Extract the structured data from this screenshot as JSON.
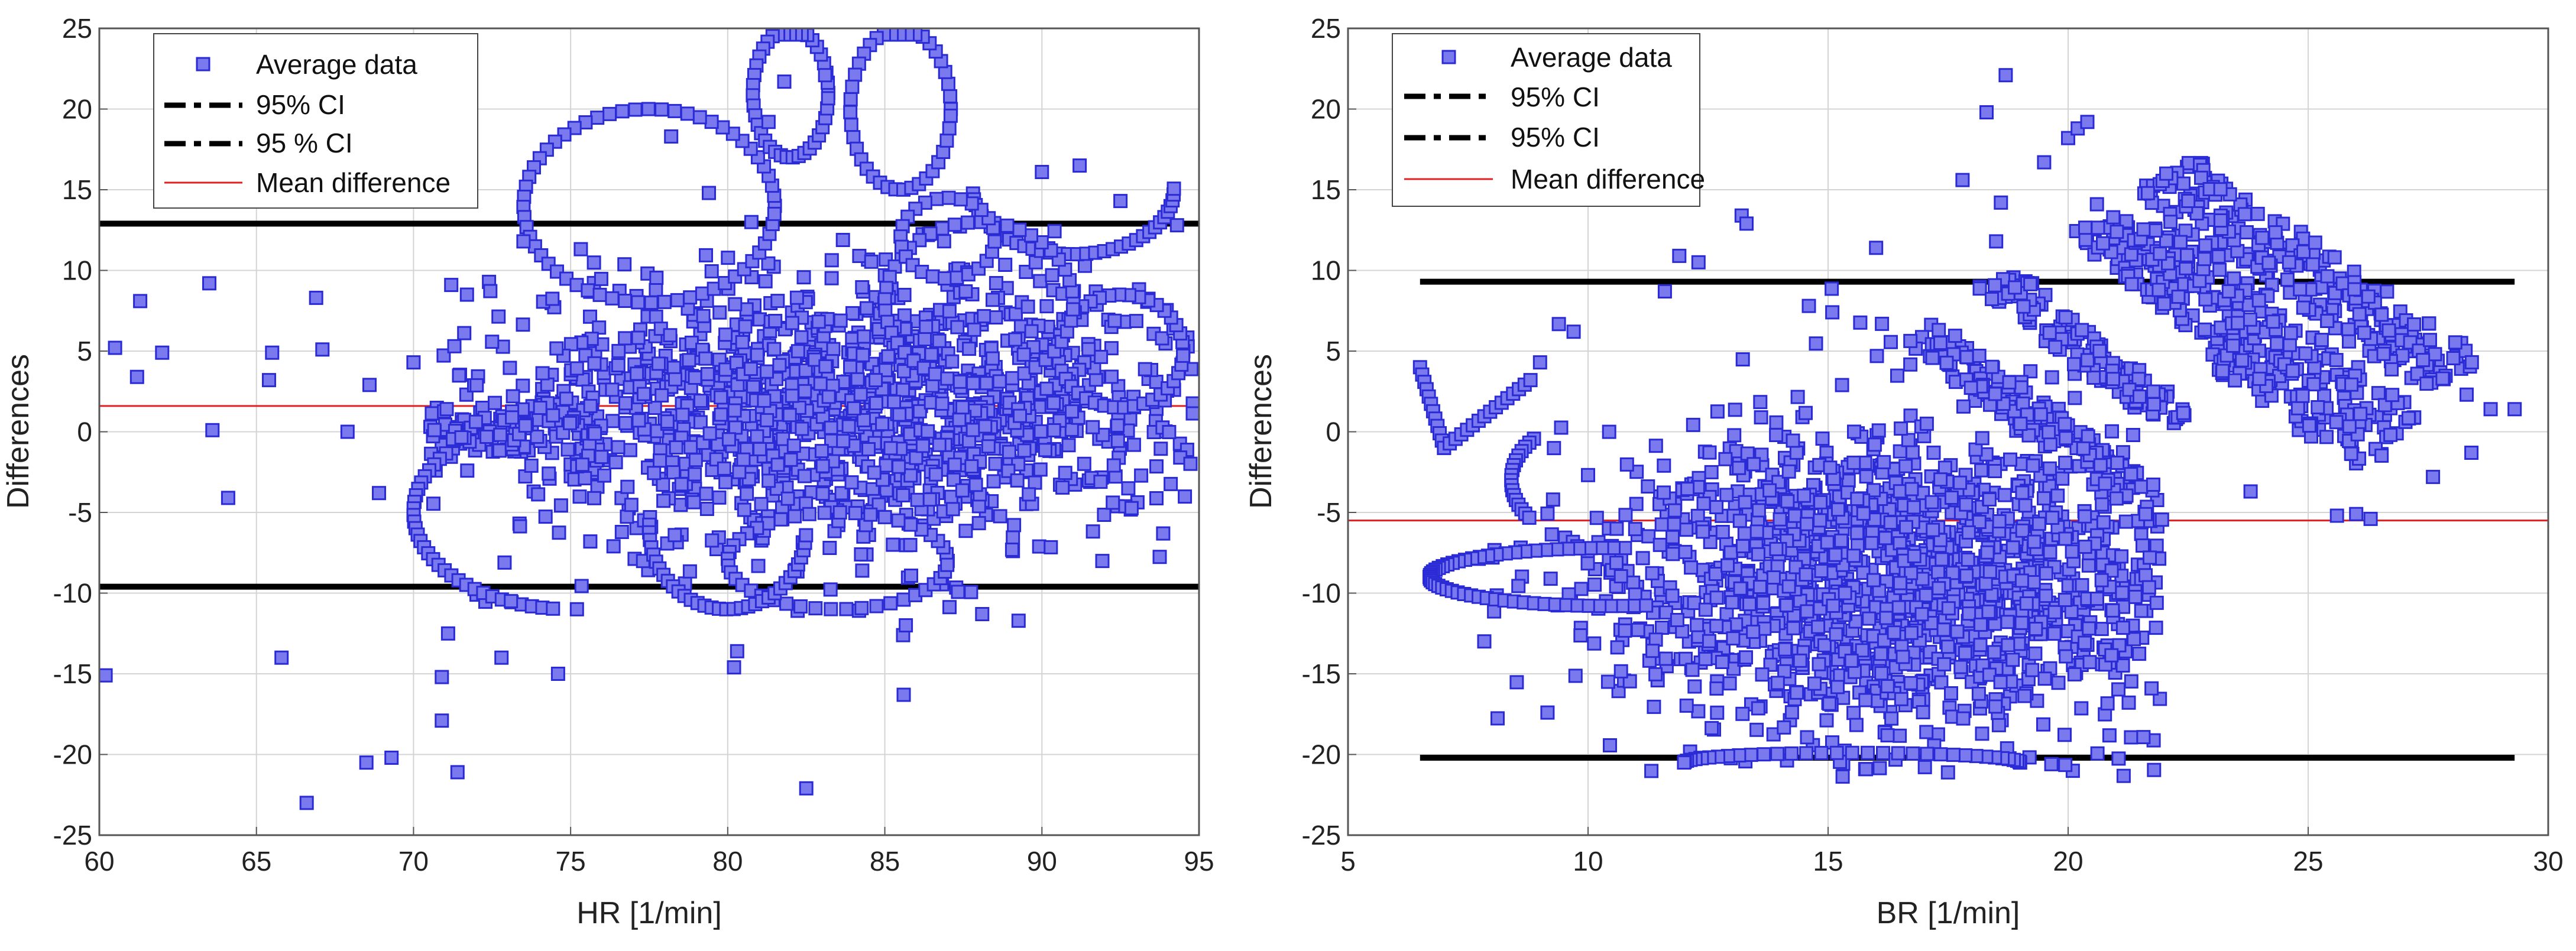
{
  "chart_data": [
    {
      "type": "scatter",
      "title": "",
      "xlabel": "HR [1/min]",
      "ylabel": "Differences",
      "xlim": [
        60,
        95
      ],
      "ylim": [
        -25,
        25
      ],
      "xticks": [
        60,
        65,
        70,
        75,
        80,
        85,
        90,
        95
      ],
      "yticks": [
        -25,
        -20,
        -15,
        -10,
        -5,
        0,
        5,
        10,
        15,
        20,
        25
      ],
      "grid": true,
      "legend_position": "top-left",
      "legend": [
        "Average data",
        "95% CI",
        "95 % CI",
        "Mean difference"
      ],
      "mean_difference": 1.6,
      "upper_ci": 12.9,
      "lower_ci": -9.6,
      "marker_color": "#7a7aee",
      "marker_edge_color": "#2b2bd6",
      "mean_line_color": "#e02020",
      "ci_line_color": "#000000",
      "cloud": {
        "x_center": 84,
        "x_spread": 6,
        "x_min": 70.5,
        "x_max": 95,
        "y_center": 1.5,
        "y_spread": 4.2,
        "count": 1500
      },
      "points": [
        [
          60.2,
          -15.1
        ],
        [
          60.5,
          5.2
        ],
        [
          61.3,
          8.1
        ],
        [
          61.2,
          3.4
        ],
        [
          62,
          4.9
        ],
        [
          63.5,
          9.2
        ],
        [
          63.6,
          0.1
        ],
        [
          64.1,
          -4.1
        ],
        [
          65.5,
          4.9
        ],
        [
          65.4,
          3.2
        ],
        [
          65.8,
          -14
        ],
        [
          66.6,
          -23
        ],
        [
          66.9,
          8.3
        ],
        [
          67.1,
          5.1
        ],
        [
          67.9,
          0
        ],
        [
          68.5,
          -20.5
        ],
        [
          68.6,
          2.9
        ],
        [
          68.9,
          -3.8
        ],
        [
          69.3,
          -20.2
        ],
        [
          70,
          4.3
        ],
        [
          70.9,
          -17.9
        ],
        [
          70.9,
          -15.2
        ],
        [
          71.1,
          -12.5
        ],
        [
          71.2,
          9.1
        ],
        [
          71.3,
          5.3
        ],
        [
          71.4,
          -21.1
        ],
        [
          71.7,
          8.5
        ],
        [
          72.8,
          -14
        ],
        [
          73.1,
          -10.5
        ],
        [
          73.5,
          11.8
        ],
        [
          74.6,
          -15
        ],
        [
          75.2,
          -11
        ],
        [
          78.2,
          18.3
        ],
        [
          79.4,
          14.8
        ],
        [
          80.2,
          -14.6
        ],
        [
          80.3,
          -13.6
        ],
        [
          81.3,
          19.2
        ],
        [
          81.8,
          21.7
        ],
        [
          82.5,
          -22.1
        ],
        [
          83.1,
          22.1
        ],
        [
          85.6,
          -16.3
        ],
        [
          88.1,
          -11.3
        ],
        [
          90,
          16.1
        ],
        [
          91.2,
          16.5
        ],
        [
          92.5,
          14.3
        ],
        [
          94.3,
          12.8
        ]
      ],
      "curves": [
        {
          "cx": 77.5,
          "cy": 14,
          "rx": 4,
          "ry": 6,
          "start": 0,
          "end": 6.2,
          "n": 60
        },
        {
          "cx": 82,
          "cy": 21,
          "rx": 1.2,
          "ry": 4,
          "start": 0,
          "end": 6.2,
          "n": 40
        },
        {
          "cx": 85.5,
          "cy": 20,
          "rx": 1.6,
          "ry": 5,
          "start": 0,
          "end": 6.2,
          "n": 40
        },
        {
          "cx": 91,
          "cy": 15,
          "rx": 3.2,
          "ry": 4,
          "start": 3.2,
          "end": 6.3,
          "n": 35
        },
        {
          "cx": 92.5,
          "cy": 5,
          "rx": 2,
          "ry": 3.5,
          "start": 0,
          "end": 6.2,
          "n": 40
        },
        {
          "cx": 75,
          "cy": -5,
          "rx": 5,
          "ry": 6,
          "start": 1.6,
          "end": 4.6,
          "n": 45
        },
        {
          "cx": 83.5,
          "cy": -8,
          "rx": 3.5,
          "ry": 3,
          "start": 0,
          "end": 6.2,
          "n": 45
        },
        {
          "cx": 80,
          "cy": -6,
          "rx": 2.5,
          "ry": 5,
          "start": 3,
          "end": 6.2,
          "n": 35
        },
        {
          "cx": 88,
          "cy": 8,
          "rx": 3,
          "ry": 5,
          "start": 0,
          "end": 6.2,
          "n": 45
        },
        {
          "cx": 87,
          "cy": 12,
          "rx": 1.5,
          "ry": 2.5,
          "start": 0,
          "end": 6.2,
          "n": 25
        }
      ],
      "fan": {
        "x_from": 70.5,
        "x_to": 76,
        "y_half_from": 0.3,
        "y_half_to": 2.5,
        "count": 90
      }
    },
    {
      "type": "scatter",
      "title": "",
      "xlabel": "BR [1/min]",
      "ylabel": "Differences",
      "xlim": [
        5,
        30
      ],
      "ylim": [
        -25,
        25
      ],
      "xticks": [
        5,
        10,
        15,
        20,
        25,
        30
      ],
      "yticks": [
        -25,
        -20,
        -15,
        -10,
        -5,
        0,
        5,
        10,
        15,
        20,
        25
      ],
      "grid": true,
      "legend_position": "top-left",
      "legend": [
        "Average data",
        "95% CI",
        "95% CI",
        "Mean difference"
      ],
      "mean_difference": -5.5,
      "upper_ci": 9.3,
      "lower_ci": -20.2,
      "marker_color": "#7a7aee",
      "marker_edge_color": "#2b2bd6",
      "mean_line_color": "#e02020",
      "ci_line_color": "#000000",
      "cloud": {
        "x_center": 16.5,
        "x_spread": 3.2,
        "x_min": 7.5,
        "x_max": 22,
        "y_center": -9,
        "y_spread": 5,
        "count": 1700
      },
      "points": [
        [
          9,
          4.3
        ],
        [
          9.7,
          6.2
        ],
        [
          11.6,
          8.7
        ],
        [
          11.9,
          10.9
        ],
        [
          12.3,
          10.5
        ],
        [
          13.2,
          13.4
        ],
        [
          13.3,
          12.9
        ],
        [
          14.6,
          7.8
        ],
        [
          16,
          11.4
        ],
        [
          17.8,
          15.6
        ],
        [
          18.3,
          19.8
        ],
        [
          18.5,
          11.8
        ],
        [
          18.7,
          22.1
        ],
        [
          18.6,
          14.2
        ],
        [
          19.5,
          16.7
        ],
        [
          20,
          18.2
        ],
        [
          20.2,
          18.8
        ],
        [
          20.4,
          19.2
        ],
        [
          20.6,
          14.1
        ],
        [
          23.8,
          -3.7
        ],
        [
          25.6,
          -5.2
        ],
        [
          26,
          -5.1
        ],
        [
          26.3,
          -5.4
        ],
        [
          27.6,
          -2.8
        ],
        [
          28.4,
          -1.3
        ],
        [
          28.8,
          1.4
        ],
        [
          29.3,
          1.4
        ],
        [
          28.3,
          2.3
        ],
        [
          27.8,
          3.3
        ],
        [
          21.7,
          -7.8
        ]
      ],
      "curves": [
        {
          "cx": 10.5,
          "cy": -9,
          "rx": 3.8,
          "ry": 1.8,
          "start": 1.5,
          "end": 4.9,
          "n": 55
        },
        {
          "cx": 10.2,
          "cy": -3,
          "rx": 1.8,
          "ry": 3.8,
          "start": 2.4,
          "end": 3.8,
          "n": 18
        },
        {
          "cx": 15.5,
          "cy": -20.5,
          "rx": 3.5,
          "ry": 0.6,
          "start": 0,
          "end": 3.14,
          "n": 35
        }
      ],
      "v_shape": [
        {
          "from": [
            6.5,
            4
          ],
          "to": [
            7,
            -1
          ],
          "n": 12
        },
        {
          "from": [
            7,
            -1
          ],
          "to": [
            8.8,
            3.2
          ],
          "n": 16
        }
      ],
      "bands": [
        {
          "from": [
            17,
            6
          ],
          "to": [
            21.5,
            -4
          ],
          "width": 1.3,
          "count": 120
        },
        {
          "from": [
            18.5,
            9.5
          ],
          "to": [
            22.5,
            0
          ],
          "width": 1.3,
          "count": 120
        },
        {
          "from": [
            20.5,
            13
          ],
          "to": [
            24.5,
            3
          ],
          "width": 1.6,
          "count": 140
        },
        {
          "from": [
            22,
            16
          ],
          "to": [
            28,
            3.5
          ],
          "width": 2.2,
          "count": 230
        },
        {
          "from": [
            21.5,
            13
          ],
          "to": [
            27,
            0
          ],
          "width": 1.6,
          "count": 140
        },
        {
          "from": [
            23,
            5
          ],
          "to": [
            26.5,
            -2
          ],
          "width": 1.2,
          "count": 60
        }
      ]
    }
  ]
}
